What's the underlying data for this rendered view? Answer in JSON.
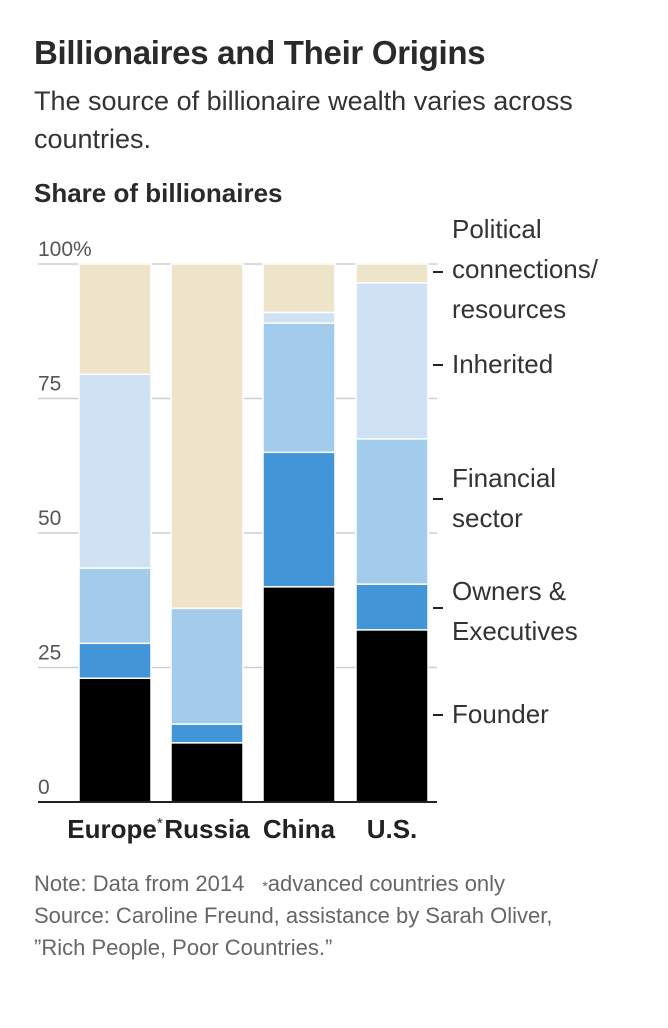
{
  "header": {
    "title": "Billionaires and Their Origins",
    "subtitle": "The source of billionaire wealth varies across countries."
  },
  "chart_data": {
    "type": "bar",
    "stacked": true,
    "title": "Billionaires and Their Origins",
    "subtitle": "The source of billionaire wealth varies across countries.",
    "ylabel": "Share of billionaires",
    "xlabel": "",
    "ylim": [
      0,
      100
    ],
    "yticks": [
      0,
      25,
      50,
      75,
      100
    ],
    "ytick_labels": [
      "0",
      "25",
      "50",
      "75",
      "100%"
    ],
    "grid": true,
    "legend_placement": "right",
    "categories": [
      "Europe",
      "Russia",
      "China",
      "U.S."
    ],
    "category_markers": [
      "*",
      "",
      "",
      ""
    ],
    "series": [
      {
        "name": "Founder",
        "label_lines": [
          "Founder"
        ],
        "color": "#000000",
        "values": [
          23,
          11,
          40,
          32
        ]
      },
      {
        "name": "Owners & Executives",
        "label_lines": [
          "Owners &",
          "Executives"
        ],
        "color": "#4296d8",
        "values": [
          6.5,
          3.5,
          25,
          8.5
        ]
      },
      {
        "name": "Financial sector",
        "label_lines": [
          "Financial",
          "sector"
        ],
        "color": "#a3cbec",
        "values": [
          14,
          21.5,
          24,
          27
        ]
      },
      {
        "name": "Inherited",
        "label_lines": [
          "Inherited"
        ],
        "color": "#cfe2f3",
        "values": [
          36,
          0,
          2,
          29
        ]
      },
      {
        "name": "Political connections/resources",
        "label_lines": [
          "Political",
          "connections/",
          "resources"
        ],
        "color": "#ede4c9",
        "values": [
          20.5,
          64,
          9,
          3.5
        ]
      }
    ]
  },
  "notes": {
    "note": "Note: Data from 2014",
    "footnote_marker": "*",
    "footnote": "advanced countries only",
    "source_line1": "Source: Caroline Freund, assistance by Sarah Oliver,",
    "source_line2": "”Rich People, Poor Countries.”"
  }
}
